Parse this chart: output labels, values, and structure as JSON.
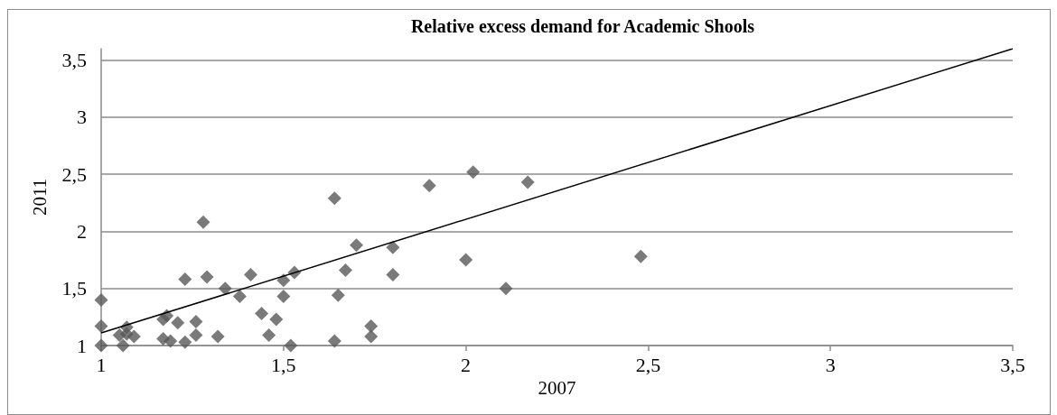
{
  "chart_data": {
    "type": "scatter",
    "title": "Relative excess demand for Academic Shools",
    "xlabel": "2007",
    "ylabel": "2011",
    "xlim": [
      1,
      3.5
    ],
    "xticks": [
      1,
      {
        "value": 1.5,
        "label": "1,5"
      },
      2,
      {
        "value": 2.5,
        "label": "2,5"
      },
      3,
      {
        "value": 3.5,
        "label": "3,5"
      }
    ],
    "ylim": [
      1,
      3.6
    ],
    "yticks": [
      1,
      {
        "value": 1.5,
        "label": "1,5"
      },
      2,
      {
        "value": 2.5,
        "label": "2,5"
      },
      3,
      {
        "value": 3.5,
        "label": "3,5"
      }
    ],
    "grid": "y",
    "marker": "diamond",
    "series": [
      {
        "color": "#595959",
        "x": [
          1.0,
          1.0,
          1.0,
          1.06,
          1.07,
          1.05,
          1.09,
          1.07,
          1.17,
          1.19,
          1.18,
          1.17,
          1.21,
          1.23,
          1.23,
          1.28,
          1.29,
          1.26,
          1.26,
          1.32,
          1.34,
          1.38,
          1.41,
          1.44,
          1.46,
          1.48,
          1.5,
          1.5,
          1.53,
          1.52,
          1.64,
          1.64,
          1.65,
          1.67,
          1.7,
          1.74,
          1.74,
          1.8,
          1.8,
          1.9,
          2.02,
          2.17,
          2.0,
          2.11,
          2.48
        ],
        "values": [
          1.4,
          1.17,
          1.0,
          1.0,
          1.16,
          1.09,
          1.08,
          1.1,
          1.06,
          1.04,
          1.26,
          1.23,
          1.2,
          1.03,
          1.58,
          2.08,
          1.6,
          1.21,
          1.09,
          1.08,
          1.5,
          1.43,
          1.62,
          1.28,
          1.09,
          1.23,
          1.43,
          1.57,
          1.64,
          1.0,
          2.29,
          1.04,
          1.44,
          1.66,
          1.88,
          1.17,
          1.08,
          1.86,
          1.62,
          2.4,
          2.52,
          2.43,
          1.75,
          1.5,
          1.78
        ]
      },
      {
        "type": "line",
        "color": "#000000",
        "marker": "none",
        "line_style": "solid",
        "x": [
          1,
          3.5
        ],
        "values": [
          1.11,
          3.6
        ]
      }
    ]
  }
}
